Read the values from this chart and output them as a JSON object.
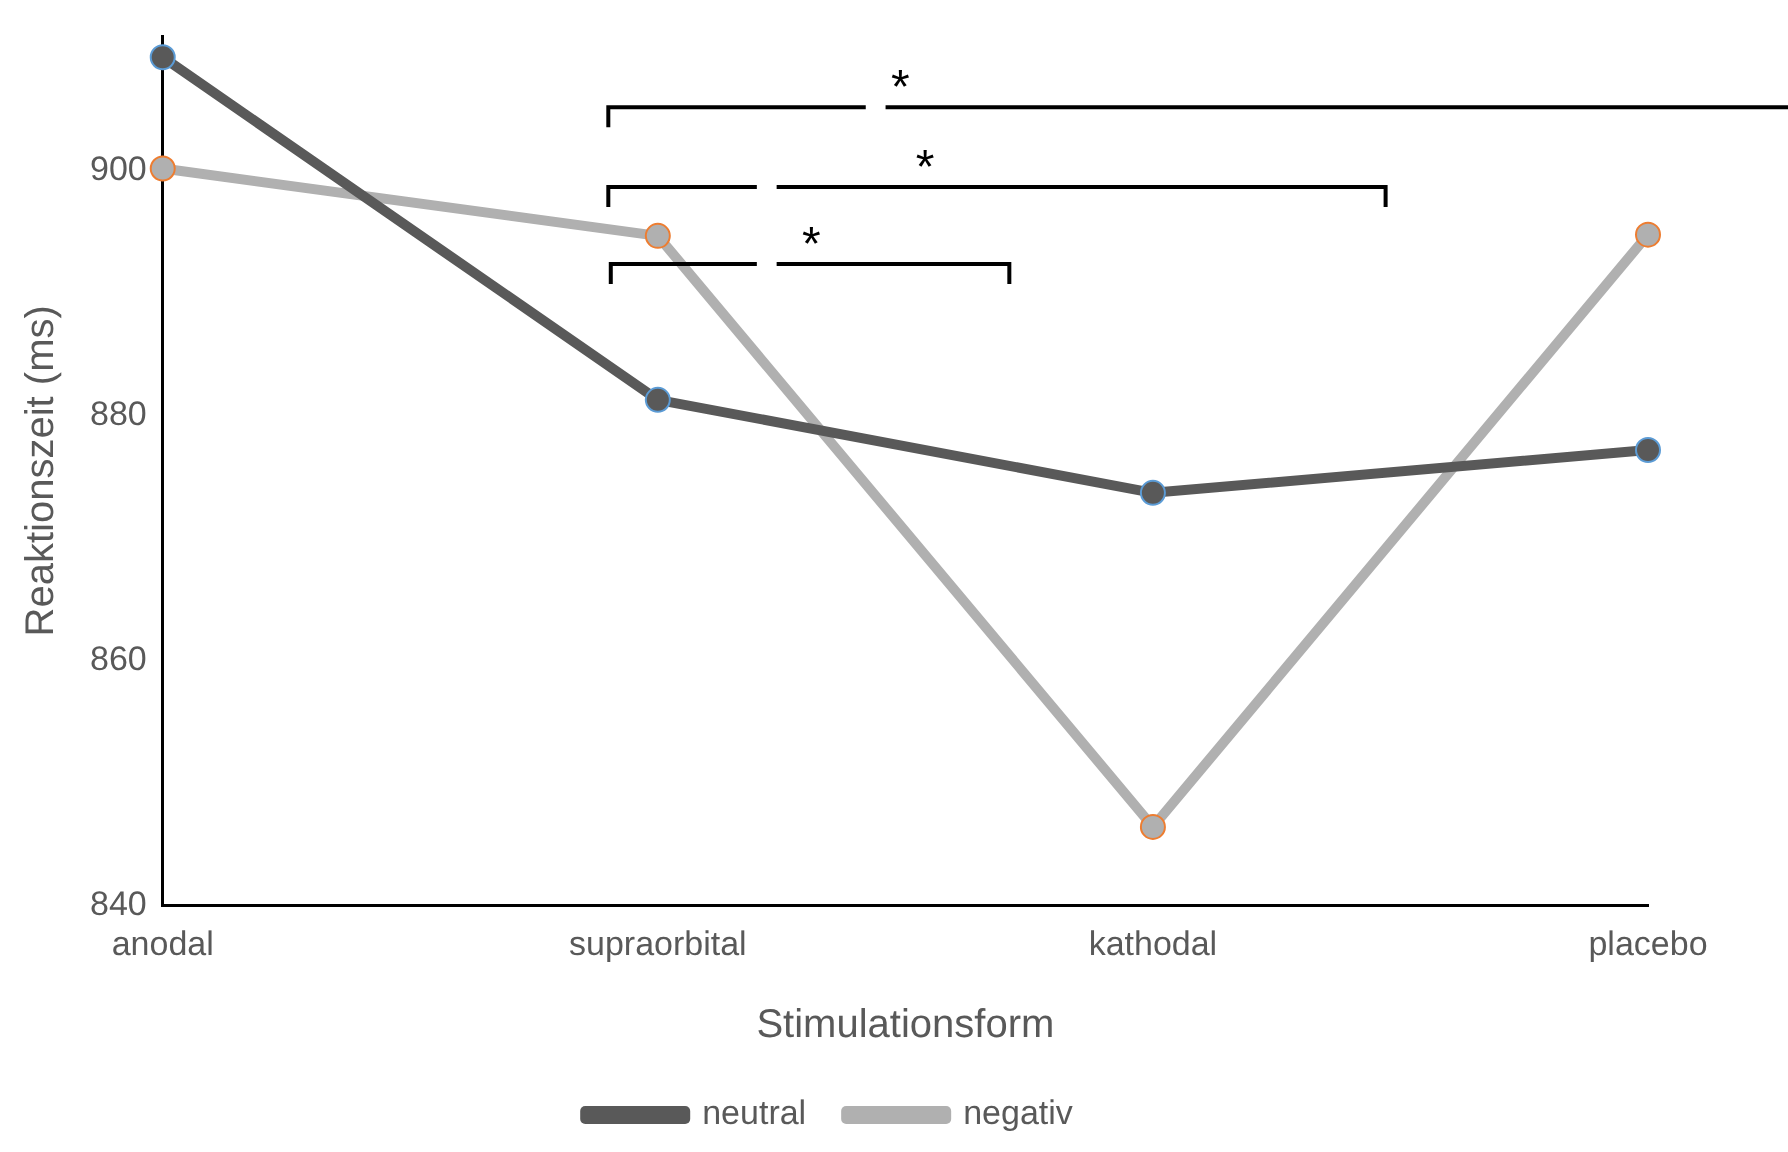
{
  "chart_data": {
    "type": "line",
    "xlabel": "Stimulationsform",
    "ylabel": "Reaktionszeit (ms)",
    "categories": [
      "anodal",
      "supraorbital",
      "kathodal",
      "placebo"
    ],
    "series": [
      {
        "name": "neutral",
        "color": "#595959",
        "values": [
          909.3,
          881.3,
          873.7,
          877.2
        ]
      },
      {
        "name": "negativ",
        "color": "#b0b0b0",
        "values": [
          900.2,
          894.7,
          846.4,
          894.8
        ]
      }
    ],
    "ylim": [
      840,
      911
    ],
    "yticks": [
      840,
      860,
      880,
      900
    ],
    "grid": false,
    "legend": "bottom",
    "marker": "circle",
    "line_style": "solid",
    "annotations": [
      "*",
      "*",
      "*"
    ]
  }
}
